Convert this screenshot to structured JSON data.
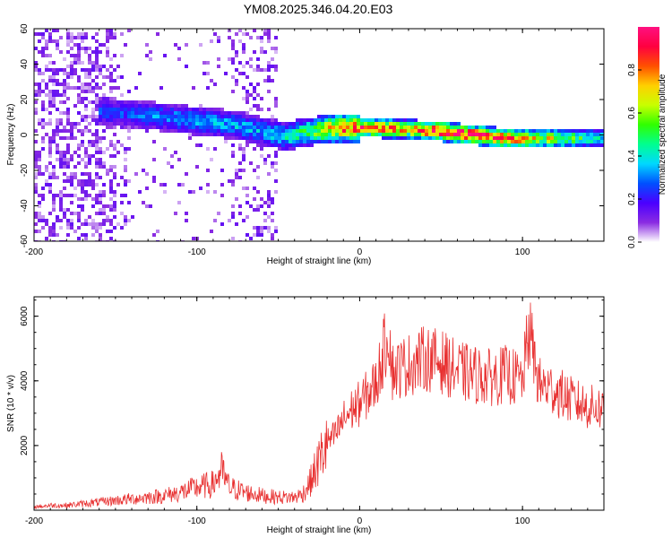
{
  "chart_data": [
    {
      "type": "heatmap",
      "title": "YM08.2025.346.04.20.E03",
      "xlabel": "Height of straight line (km)",
      "ylabel": "Frequency (Hz)",
      "xlim": [
        -200,
        150
      ],
      "ylim": [
        -60,
        60
      ],
      "xticks": [
        "-200",
        "-100",
        "0",
        "100"
      ],
      "xtick_values": [
        -200,
        -100,
        0,
        100
      ],
      "yticks": [
        "60",
        "40",
        "20",
        "0",
        "-20",
        "-40",
        "-60"
      ],
      "ytick_values": [
        60,
        40,
        20,
        0,
        -20,
        -40,
        -60
      ],
      "colorbar": {
        "label": "Normalized spectral amplitude",
        "range": [
          0.0,
          1.0
        ],
        "ticks": [
          "0.0",
          "0.2",
          "0.4",
          "0.6",
          "0.8"
        ],
        "tick_values": [
          0.0,
          0.2,
          0.4,
          0.6,
          0.8
        ],
        "colormap": [
          "#ffffff",
          "#8a2be2",
          "#4b00ff",
          "#0050ff",
          "#00d8ff",
          "#00ff90",
          "#30ff00",
          "#c8ff00",
          "#ffd000",
          "#ff5000",
          "#ff0040",
          "#ff1080"
        ]
      },
      "ridge": {
        "x": [
          -155,
          -130,
          -100,
          -80,
          -60,
          -45,
          -30,
          -10,
          10,
          30,
          50,
          70,
          90,
          110,
          130,
          150
        ],
        "freq_hz": [
          13,
          11,
          8,
          6,
          2,
          -1,
          2,
          4,
          4,
          3,
          2,
          0,
          -2,
          -2,
          -2,
          -2
        ],
        "amplitude": [
          0.25,
          0.3,
          0.35,
          0.35,
          0.35,
          0.4,
          0.55,
          0.85,
          0.85,
          0.7,
          0.95,
          0.9,
          0.85,
          0.7,
          0.55,
          0.4
        ]
      }
    },
    {
      "type": "line",
      "title": "",
      "xlabel": "Height of straight line (km)",
      "ylabel": "SNR (10 * v/v)",
      "xlim": [
        -200,
        150
      ],
      "ylim": [
        0,
        6600
      ],
      "xticks": [
        "-200",
        "-100",
        "0",
        "100"
      ],
      "xtick_values": [
        -200,
        -100,
        0,
        100
      ],
      "yticks": [
        "6000",
        "4000",
        "2000"
      ],
      "ytick_values": [
        6000,
        4000,
        2000
      ],
      "series": [
        {
          "name": "SNR",
          "color": "#e83030",
          "x": [
            -200,
            -190,
            -180,
            -170,
            -160,
            -150,
            -140,
            -130,
            -120,
            -110,
            -100,
            -90,
            -85,
            -80,
            -70,
            -60,
            -50,
            -40,
            -35,
            -30,
            -25,
            -20,
            -15,
            -10,
            -5,
            0,
            10,
            18,
            20,
            30,
            40,
            50,
            60,
            70,
            80,
            90,
            100,
            104,
            110,
            120,
            130,
            140,
            150
          ],
          "values": [
            100,
            150,
            150,
            200,
            250,
            300,
            350,
            400,
            450,
            550,
            700,
            800,
            1200,
            700,
            550,
            450,
            400,
            400,
            500,
            900,
            1500,
            2100,
            2300,
            2800,
            3100,
            3300,
            3900,
            5600,
            4300,
            4500,
            4700,
            4600,
            4300,
            4200,
            4100,
            4200,
            4000,
            5600,
            3900,
            3700,
            3400,
            3200,
            3150
          ]
        }
      ]
    }
  ]
}
